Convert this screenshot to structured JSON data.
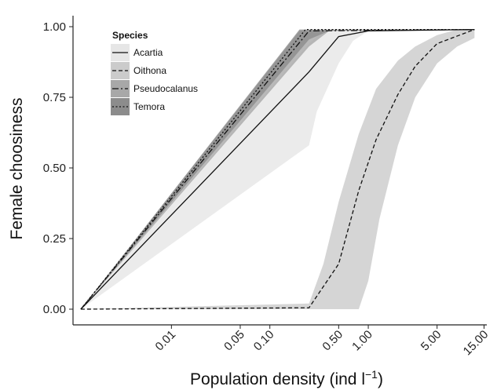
{
  "chart_data": {
    "type": "line",
    "xlabel": "Population density (ind l",
    "xlabel_superscript": "−1",
    "xlabel_close": ")",
    "ylabel": "Female choosiness",
    "x_scale": "log",
    "xlim": [
      0.001,
      16
    ],
    "ylim": [
      0,
      1
    ],
    "grid": false,
    "legend_title": "Species",
    "legend_position": "top-left",
    "x_ticks": [
      0.01,
      0.05,
      0.1,
      0.5,
      1,
      5,
      15
    ],
    "x_tick_labels": [
      "0.01",
      "0.05",
      "0.10",
      "0.50",
      "1.00",
      "5.00",
      "15.00"
    ],
    "y_ticks": [
      0,
      0.25,
      0.5,
      0.75,
      1
    ],
    "y_tick_labels": [
      "0.00",
      "0.25",
      "0.50",
      "0.75",
      "1.00"
    ],
    "series": [
      {
        "name": "Acartia",
        "linestyle": "solid",
        "ribbon_color": "#e6e6e6",
        "line": [
          [
            0.0012,
            0
          ],
          [
            0.25,
            0.84
          ],
          [
            0.5,
            0.965
          ],
          [
            1.0,
            0.985
          ],
          [
            12,
            0.99
          ]
        ],
        "lower": [
          [
            0.0012,
            0
          ],
          [
            0.25,
            0.58
          ],
          [
            0.3,
            0.7
          ],
          [
            0.5,
            0.87
          ],
          [
            0.7,
            0.95
          ],
          [
            1.0,
            0.985
          ],
          [
            12,
            0.99
          ]
        ],
        "upper": [
          [
            0.0012,
            0
          ],
          [
            0.25,
            0.94
          ],
          [
            0.35,
            0.985
          ],
          [
            0.5,
            0.99
          ],
          [
            12,
            0.99
          ]
        ]
      },
      {
        "name": "Oithona",
        "linestyle": "dashed",
        "ribbon_color": "#cbcbcb",
        "line": [
          [
            0.0012,
            0
          ],
          [
            0.25,
            0.005
          ],
          [
            0.5,
            0.16
          ],
          [
            0.8,
            0.42
          ],
          [
            1.2,
            0.6
          ],
          [
            2,
            0.76
          ],
          [
            3,
            0.86
          ],
          [
            5,
            0.94
          ],
          [
            12,
            0.99
          ]
        ],
        "lower": [
          [
            0.0012,
            0
          ],
          [
            0.25,
            0
          ],
          [
            0.8,
            0
          ],
          [
            1.0,
            0.1
          ],
          [
            1.3,
            0.32
          ],
          [
            2,
            0.58
          ],
          [
            3,
            0.75
          ],
          [
            5,
            0.87
          ],
          [
            8,
            0.93
          ],
          [
            12,
            0.96
          ]
        ],
        "upper": [
          [
            0.0012,
            0
          ],
          [
            0.25,
            0.02
          ],
          [
            0.35,
            0.16
          ],
          [
            0.5,
            0.38
          ],
          [
            0.8,
            0.62
          ],
          [
            1.2,
            0.78
          ],
          [
            2,
            0.88
          ],
          [
            3,
            0.93
          ],
          [
            5,
            0.97
          ],
          [
            8,
            0.99
          ],
          [
            12,
            0.99
          ]
        ]
      },
      {
        "name": "Pseudocalanus",
        "linestyle": "dashdot",
        "ribbon_color": "#a8a8a8",
        "line": [
          [
            0.0012,
            0
          ],
          [
            0.25,
            0.985
          ],
          [
            12,
            0.99
          ]
        ],
        "lower": [
          [
            0.0012,
            0
          ],
          [
            0.25,
            0.93
          ],
          [
            0.4,
            0.985
          ],
          [
            12,
            0.99
          ]
        ],
        "upper": [
          [
            0.0012,
            0
          ],
          [
            0.2,
            0.985
          ],
          [
            12,
            0.99
          ]
        ]
      },
      {
        "name": "Temora",
        "linestyle": "dotted",
        "ribbon_color": "#8c8c8c",
        "line": [
          [
            0.0012,
            0
          ],
          [
            0.23,
            0.99
          ],
          [
            12,
            0.99
          ]
        ],
        "lower": [
          [
            0.0012,
            0
          ],
          [
            0.25,
            0.955
          ],
          [
            0.4,
            0.985
          ],
          [
            12,
            0.99
          ]
        ],
        "upper": [
          [
            0.0012,
            0
          ],
          [
            0.2,
            0.99
          ],
          [
            12,
            0.99
          ]
        ]
      }
    ]
  }
}
